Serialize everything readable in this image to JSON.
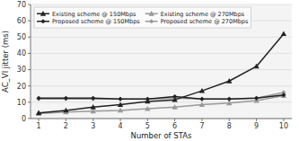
{
  "chart_data": {
    "type": "line",
    "x": [
      1,
      2,
      3,
      4,
      5,
      6,
      7,
      8,
      9,
      10
    ],
    "series": [
      {
        "name": "Existing scheme @ 150Mbps",
        "color": "#222222",
        "marker": "triangle",
        "values": [
          3.5,
          5.0,
          7.0,
          8.5,
          10.5,
          11.5,
          17.0,
          23.0,
          32.0,
          52.0
        ]
      },
      {
        "name": "Proposed scheme @ 150Mbps",
        "color": "#222222",
        "marker": "diamond",
        "values": [
          12.5,
          12.5,
          12.5,
          12.0,
          12.0,
          13.5,
          12.0,
          12.0,
          12.5,
          14.5
        ]
      },
      {
        "name": "Existing scheme @ 270Mbps",
        "color": "#999999",
        "marker": "triangle",
        "values": [
          3.0,
          4.0,
          4.5,
          5.0,
          6.0,
          7.0,
          8.5,
          9.5,
          11.0,
          14.0
        ]
      },
      {
        "name": "Proposed scheme @ 270Mbps",
        "color": "#999999",
        "marker": "diamond",
        "values": [
          12.0,
          12.0,
          12.0,
          12.0,
          12.0,
          12.5,
          12.0,
          12.0,
          12.5,
          16.0
        ]
      }
    ],
    "xlabel": "Number of STAs",
    "ylabel": "AC_VI jitter (ms)",
    "xlim": [
      0.7,
      10.3
    ],
    "xticks": [
      1,
      2,
      3,
      4,
      5,
      6,
      7,
      8,
      9,
      10
    ],
    "ylim": [
      0,
      70
    ],
    "yticks": [
      0,
      10,
      20,
      30,
      40,
      50,
      60,
      70
    ],
    "grid": "y",
    "legend": "upper left"
  }
}
